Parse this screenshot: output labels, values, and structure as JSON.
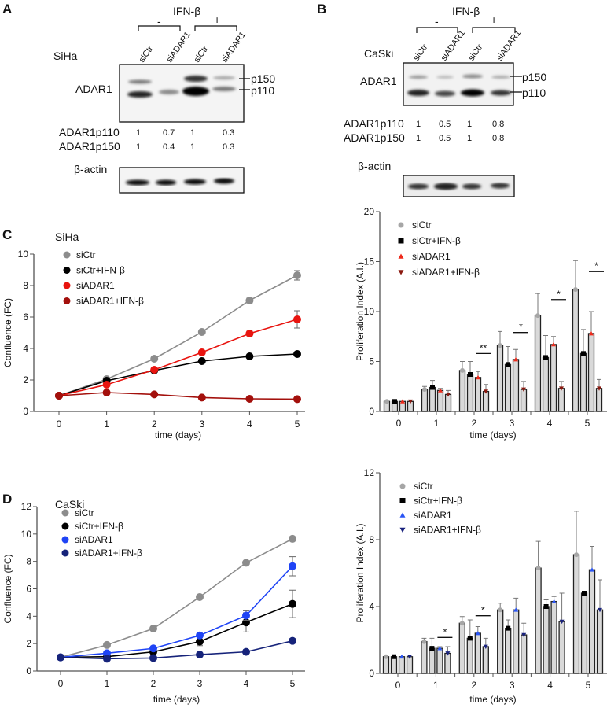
{
  "panels": {
    "A": {
      "label": "A",
      "cell_line": "SiHa",
      "treatment": "IFN-β",
      "minus": "-",
      "plus": "+",
      "lanes": [
        "siCtr",
        "siADAR1",
        "siCtr",
        "siADAR1"
      ],
      "protein": "ADAR1",
      "band_upper": "p150",
      "band_lower": "p110",
      "quant": [
        {
          "name": "ADAR1p110",
          "values": [
            "1",
            "0.7",
            "1",
            "0.3"
          ]
        },
        {
          "name": "ADAR1p150",
          "values": [
            "1",
            "0.4",
            "1",
            "0.3"
          ]
        }
      ],
      "loading": "β-actin"
    },
    "B": {
      "label": "B",
      "cell_line": "CaSki",
      "treatment": "IFN-β",
      "minus": "-",
      "plus": "+",
      "lanes": [
        "siCtr",
        "siADAR1",
        "siCtr",
        "siADAR1"
      ],
      "protein": "ADAR1",
      "band_upper": "p150",
      "band_lower": "p110",
      "quant": [
        {
          "name": "ADAR1p110",
          "values": [
            "1",
            "0.5",
            "1",
            "0.8"
          ]
        },
        {
          "name": "ADAR1p150",
          "values": [
            "1",
            "0.5",
            "1",
            "0.8"
          ]
        }
      ],
      "loading": "β-actin"
    },
    "C": {
      "label": "C",
      "cell_line": "SiHa"
    },
    "D": {
      "label": "D",
      "cell_line": "CaSki"
    }
  },
  "chart_data": [
    {
      "id": "C-confluence",
      "type": "line",
      "xlabel": "time (days)",
      "ylabel": "Confluence (FC)",
      "x": [
        0,
        1,
        2,
        3,
        4,
        5
      ],
      "xlim": [
        0,
        5
      ],
      "ylim": [
        0,
        10
      ],
      "yticks": [
        0,
        2,
        4,
        6,
        8,
        10
      ],
      "legend": "top-left",
      "grid": false,
      "series": [
        {
          "name": "siCtr",
          "color": "#8c8c8c",
          "values": [
            1,
            2.05,
            3.35,
            5.05,
            7.05,
            8.65
          ],
          "err": [
            0,
            0,
            0,
            0.1,
            0.15,
            0.3
          ]
        },
        {
          "name": "siCtr+IFN-β",
          "color": "#000000",
          "values": [
            1,
            1.95,
            2.6,
            3.2,
            3.5,
            3.65
          ],
          "err": [
            0,
            0,
            0,
            0,
            0,
            0.1
          ]
        },
        {
          "name": "siADAR1",
          "color": "#e8140f",
          "values": [
            1,
            1.7,
            2.65,
            3.75,
            4.95,
            5.85
          ],
          "err": [
            0,
            0,
            0,
            0.1,
            0.15,
            0.55
          ]
        },
        {
          "name": "siADAR1+IFN-β",
          "color": "#a3100c",
          "values": [
            1,
            1.2,
            1.08,
            0.88,
            0.8,
            0.78
          ],
          "err": [
            0,
            0,
            0,
            0,
            0,
            0
          ]
        }
      ]
    },
    {
      "id": "C-proliferation",
      "type": "bar",
      "xlabel": "time (days)",
      "ylabel": "Proliferation Index (A.I.)",
      "categories": [
        "0",
        "1",
        "2",
        "3",
        "4",
        "5"
      ],
      "ylim": [
        0,
        20
      ],
      "yticks": [
        0,
        5,
        10,
        15,
        20
      ],
      "legend": "top-left",
      "series": [
        {
          "name": "siCtr",
          "color": "#a6a6a6",
          "marker": "circle",
          "values": [
            1,
            2.2,
            4.1,
            6.6,
            9.6,
            12.2
          ],
          "err_top": [
            1,
            2.5,
            5.0,
            8.0,
            11.8,
            15.1
          ]
        },
        {
          "name": "siCtr+IFN-β",
          "color": "#000000",
          "marker": "square",
          "values": [
            1,
            2.4,
            3.7,
            4.7,
            5.4,
            5.8
          ],
          "err_top": [
            1,
            3.1,
            5.0,
            6.5,
            7.6,
            8.2
          ]
        },
        {
          "name": "siADAR1",
          "color": "#ee2a1b",
          "marker": "triangle-up",
          "values": [
            1,
            2.1,
            3.4,
            5.2,
            6.7,
            7.8
          ],
          "err_top": [
            1,
            2.3,
            4.0,
            6.2,
            7.5,
            10.0
          ]
        },
        {
          "name": "siADAR1+IFN-β",
          "color": "#8b1a10",
          "marker": "triangle-down",
          "values": [
            1,
            1.7,
            2.0,
            2.2,
            2.3,
            2.3
          ],
          "err_top": [
            1,
            2.1,
            2.7,
            3.0,
            3.0,
            3.2
          ]
        }
      ],
      "significance": [
        {
          "day": 2,
          "label": "**",
          "y": 5.8
        },
        {
          "day": 3,
          "label": "*",
          "y": 7.9
        },
        {
          "day": 4,
          "label": "*",
          "y": 11.2
        },
        {
          "day": 5,
          "label": "*",
          "y": 14.0
        }
      ]
    },
    {
      "id": "D-confluence",
      "type": "line",
      "xlabel": "time (days)",
      "ylabel": "Confluence (FC)",
      "x": [
        0,
        1,
        2,
        3,
        4,
        5
      ],
      "xlim": [
        0,
        5
      ],
      "ylim": [
        0,
        12
      ],
      "yticks": [
        0,
        2,
        4,
        6,
        8,
        10,
        12
      ],
      "legend": "top-left",
      "grid": false,
      "series": [
        {
          "name": "siCtr",
          "color": "#8c8c8c",
          "values": [
            1,
            1.9,
            3.1,
            5.4,
            7.9,
            9.65
          ],
          "err": [
            0,
            0,
            0,
            0,
            0,
            0.1
          ]
        },
        {
          "name": "siCtr+IFN-β",
          "color": "#000000",
          "values": [
            1,
            1.05,
            1.4,
            2.15,
            3.55,
            4.9
          ],
          "err": [
            0,
            0,
            0,
            0.3,
            0.7,
            1.0
          ]
        },
        {
          "name": "siADAR1",
          "color": "#1f44f5",
          "values": [
            1,
            1.3,
            1.65,
            2.6,
            4.05,
            7.65
          ],
          "err": [
            0,
            0,
            0,
            0,
            0.35,
            0.7
          ]
        },
        {
          "name": "siADAR1+IFN-β",
          "color": "#16237a",
          "values": [
            1,
            0.9,
            0.95,
            1.2,
            1.4,
            2.2
          ],
          "err": [
            0,
            0,
            0,
            0,
            0,
            0
          ]
        }
      ]
    },
    {
      "id": "D-proliferation",
      "type": "bar",
      "xlabel": "time (days)",
      "ylabel": "Proliferation Index (A.I.)",
      "categories": [
        "0",
        "1",
        "2",
        "3",
        "4",
        "5"
      ],
      "ylim": [
        0,
        12
      ],
      "yticks": [
        0,
        4,
        8,
        12
      ],
      "legend": "top-left",
      "series": [
        {
          "name": "siCtr",
          "color": "#a6a6a6",
          "marker": "circle",
          "values": [
            1,
            1.9,
            3.0,
            3.8,
            6.3,
            7.1
          ],
          "err_top": [
            1,
            2.1,
            3.4,
            4.2,
            7.9,
            9.7
          ]
        },
        {
          "name": "siCtr+IFN-β",
          "color": "#000000",
          "marker": "square",
          "values": [
            1,
            1.5,
            2.1,
            2.7,
            4.0,
            4.8
          ],
          "err_top": [
            1,
            2.1,
            3.2,
            3.2,
            4.4,
            4.9
          ]
        },
        {
          "name": "siADAR1",
          "color": "#2a55f5",
          "marker": "triangle-up",
          "values": [
            1,
            1.5,
            2.4,
            3.8,
            4.3,
            6.2
          ],
          "err_top": [
            1,
            1.6,
            2.8,
            4.5,
            4.6,
            7.6
          ]
        },
        {
          "name": "siADAR1+IFN-β",
          "color": "#1a237e",
          "marker": "triangle-down",
          "values": [
            1,
            1.2,
            1.6,
            2.3,
            3.1,
            3.8
          ],
          "err_top": [
            1,
            1.6,
            2.1,
            3.0,
            4.8,
            5.6
          ]
        }
      ],
      "significance": [
        {
          "day": 1,
          "label": "*",
          "y": 2.15
        },
        {
          "day": 2,
          "label": "*",
          "y": 3.45
        }
      ]
    }
  ]
}
